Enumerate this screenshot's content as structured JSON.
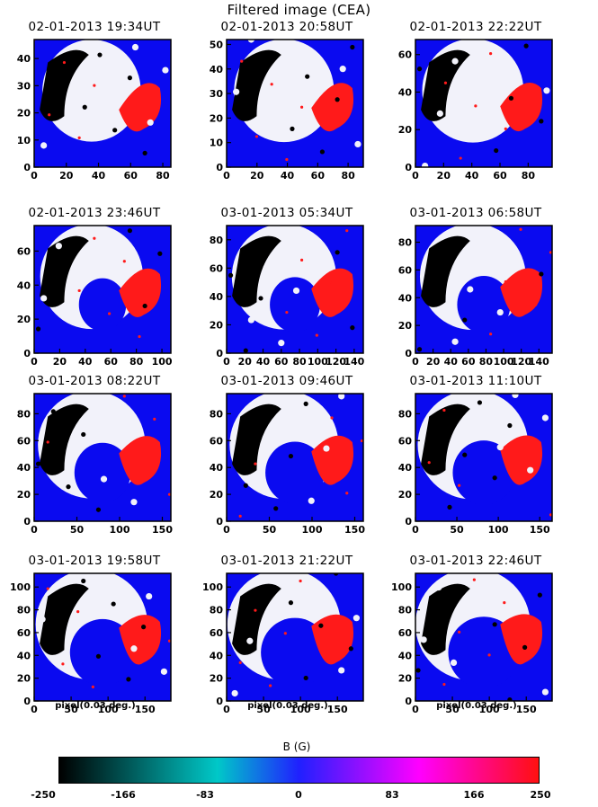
{
  "figure_title": "Filtered image (CEA)",
  "colorbar": {
    "title": "B (G)",
    "ticks": [
      "-250",
      "-166",
      "-83",
      "0",
      "83",
      "166",
      "250"
    ],
    "colors": [
      "#000000",
      "#00c8c8",
      "#2020ff",
      "#ff00ff",
      "#ff1010"
    ]
  },
  "colors": {
    "background": "#0a0af0",
    "negative": "#000000",
    "neutral": "#f2f2fa",
    "positive": "#ff1a1a"
  },
  "chart_data": [
    {
      "type": "heatmap",
      "title": "02-01-2013 19:34UT",
      "xticks": [
        "0",
        "20",
        "40",
        "60",
        "80"
      ],
      "yticks": [
        "0",
        "10",
        "20",
        "30",
        "40"
      ],
      "xlim": [
        0,
        85
      ],
      "ylim": [
        0,
        47
      ],
      "xlabel": ""
    },
    {
      "type": "heatmap",
      "title": "02-01-2013 20:58UT",
      "xticks": [
        "0",
        "20",
        "40",
        "60",
        "80"
      ],
      "yticks": [
        "0",
        "10",
        "20",
        "30",
        "40",
        "50"
      ],
      "xlim": [
        0,
        90
      ],
      "ylim": [
        0,
        52
      ],
      "xlabel": ""
    },
    {
      "type": "heatmap",
      "title": "02-01-2013 22:22UT",
      "xticks": [
        "0",
        "20",
        "40",
        "60",
        "80"
      ],
      "yticks": [
        "0",
        "20",
        "40",
        "60"
      ],
      "xlim": [
        0,
        97
      ],
      "ylim": [
        0,
        68
      ],
      "xlabel": ""
    },
    {
      "type": "heatmap",
      "title": "02-01-2013 23:46UT",
      "xticks": [
        "0",
        "20",
        "40",
        "60",
        "80",
        "100"
      ],
      "yticks": [
        "0",
        "20",
        "40",
        "60"
      ],
      "xlim": [
        0,
        107
      ],
      "ylim": [
        0,
        75
      ],
      "xlabel": ""
    },
    {
      "type": "heatmap",
      "title": "03-01-2013 05:34UT",
      "xticks": [
        "0",
        "20",
        "40",
        "60",
        "80",
        "100",
        "120",
        "140"
      ],
      "yticks": [
        "0",
        "20",
        "40",
        "60",
        "80"
      ],
      "xlim": [
        0,
        150
      ],
      "ylim": [
        0,
        90
      ],
      "xlabel": ""
    },
    {
      "type": "heatmap",
      "title": "03-01-2013 06:58UT",
      "xticks": [
        "0",
        "20",
        "40",
        "60",
        "80",
        "100",
        "120",
        "140"
      ],
      "yticks": [
        "0",
        "20",
        "40",
        "60",
        "80"
      ],
      "xlim": [
        0,
        155
      ],
      "ylim": [
        0,
        92
      ],
      "xlabel": ""
    },
    {
      "type": "heatmap",
      "title": "03-01-2013 08:22UT",
      "xticks": [
        "0",
        "50",
        "100",
        "150"
      ],
      "yticks": [
        "0",
        "20",
        "40",
        "60",
        "80"
      ],
      "xlim": [
        0,
        160
      ],
      "ylim": [
        0,
        95
      ],
      "xlabel": ""
    },
    {
      "type": "heatmap",
      "title": "03-01-2013 09:46UT",
      "xticks": [
        "0",
        "50",
        "100",
        "150"
      ],
      "yticks": [
        "0",
        "20",
        "40",
        "60",
        "80"
      ],
      "xlim": [
        0,
        160
      ],
      "ylim": [
        0,
        95
      ],
      "xlabel": ""
    },
    {
      "type": "heatmap",
      "title": "03-01-2013 11:10UT",
      "xticks": [
        "0",
        "50",
        "100",
        "150"
      ],
      "yticks": [
        "0",
        "20",
        "40",
        "60",
        "80"
      ],
      "xlim": [
        0,
        165
      ],
      "ylim": [
        0,
        95
      ],
      "xlabel": ""
    },
    {
      "type": "heatmap",
      "title": "03-01-2013 19:58UT",
      "xticks": [
        "0",
        "50",
        "100",
        "150"
      ],
      "yticks": [
        "0",
        "20",
        "40",
        "60",
        "80",
        "100"
      ],
      "xlim": [
        0,
        185
      ],
      "ylim": [
        0,
        112
      ],
      "xlabel": "pixel(0.03 deg.)"
    },
    {
      "type": "heatmap",
      "title": "03-01-2013 21:22UT",
      "xticks": [
        "0",
        "50",
        "100",
        "150"
      ],
      "yticks": [
        "0",
        "20",
        "40",
        "60",
        "80",
        "100"
      ],
      "xlim": [
        0,
        185
      ],
      "ylim": [
        0,
        112
      ],
      "xlabel": "pixel(0.03 deg.)"
    },
    {
      "type": "heatmap",
      "title": "03-01-2013 22:46UT",
      "xticks": [
        "0",
        "50",
        "100",
        "150"
      ],
      "yticks": [
        "0",
        "20",
        "40",
        "60",
        "80",
        "100"
      ],
      "xlim": [
        0,
        185
      ],
      "ylim": [
        0,
        112
      ],
      "xlabel": "pixel(0.03 deg.)"
    }
  ]
}
